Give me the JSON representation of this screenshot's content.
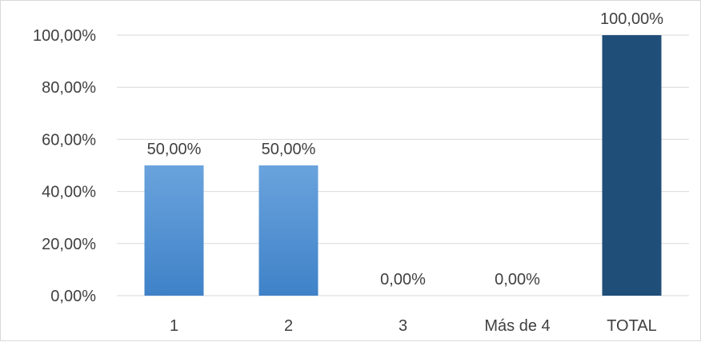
{
  "chart_data": {
    "type": "bar",
    "categories": [
      "1",
      "2",
      "3",
      "Más de 4",
      "TOTAL"
    ],
    "values": [
      50,
      50,
      0,
      0,
      100
    ],
    "value_labels": [
      "50,00%",
      "50,00%",
      "0,00%",
      "0,00%",
      "100,00%"
    ],
    "ylim": [
      0,
      100
    ],
    "yticks": [
      0,
      20,
      40,
      60,
      80,
      100
    ],
    "ytick_labels": [
      "0,00%",
      "20,00%",
      "40,00%",
      "60,00%",
      "80,00%",
      "100,00%"
    ],
    "title": "",
    "xlabel": "",
    "ylabel": "",
    "grid": true,
    "legend": "none",
    "colors": {
      "regular_bar_top": "#6aa3dd",
      "regular_bar_bottom": "#3f82c8",
      "total_bar": "#1f4e79",
      "grid": "#d9d9d9",
      "text": "#404040"
    }
  }
}
